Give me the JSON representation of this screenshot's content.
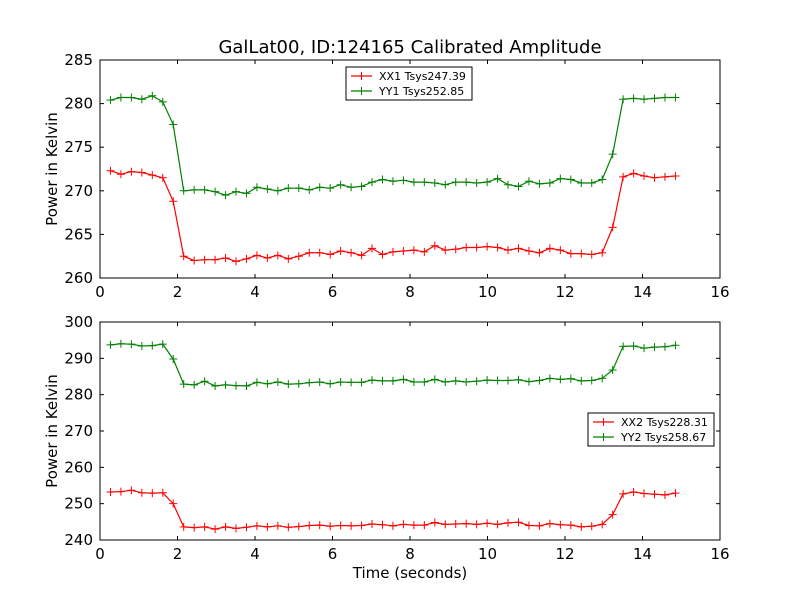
{
  "figure": {
    "title": "GalLat00, ID:124165 Calibrated Amplitude",
    "xlabel": "Time (seconds)"
  },
  "chart_data": [
    {
      "type": "line",
      "title": "GalLat00, ID:124165 Calibrated Amplitude",
      "xlabel": "",
      "ylabel": "Power in Kelvin",
      "xlim": [
        0,
        16
      ],
      "ylim": [
        260,
        285
      ],
      "xticks": [
        "0",
        "2",
        "4",
        "6",
        "8",
        "10",
        "12",
        "14",
        "16"
      ],
      "yticks": [
        "260",
        "265",
        "270",
        "275",
        "280",
        "285"
      ],
      "legend_position": "top-center",
      "x": [
        0.27,
        0.54,
        0.81,
        1.08,
        1.35,
        1.62,
        1.89,
        2.16,
        2.43,
        2.7,
        2.97,
        3.24,
        3.51,
        3.78,
        4.05,
        4.32,
        4.59,
        4.86,
        5.13,
        5.4,
        5.67,
        5.94,
        6.21,
        6.48,
        6.75,
        7.02,
        7.29,
        7.56,
        7.83,
        8.1,
        8.37,
        8.64,
        8.91,
        9.18,
        9.45,
        9.72,
        9.99,
        10.26,
        10.53,
        10.8,
        11.07,
        11.34,
        11.61,
        11.88,
        12.15,
        12.42,
        12.69,
        12.96,
        13.23,
        13.5,
        13.77,
        14.04,
        14.31,
        14.58,
        14.85
      ],
      "series": [
        {
          "name": "XX1 Tsys247.39",
          "color": "#ff0000",
          "values": [
            272.3,
            271.9,
            272.2,
            272.1,
            271.8,
            271.5,
            268.8,
            262.5,
            262.0,
            262.1,
            262.1,
            262.3,
            261.9,
            262.2,
            262.6,
            262.3,
            262.6,
            262.2,
            262.5,
            262.9,
            262.9,
            262.7,
            263.1,
            262.9,
            262.6,
            263.4,
            262.7,
            263.0,
            263.1,
            263.2,
            263.0,
            263.7,
            263.2,
            263.3,
            263.5,
            263.5,
            263.6,
            263.5,
            263.2,
            263.4,
            263.1,
            262.9,
            263.4,
            263.2,
            262.8,
            262.8,
            262.7,
            262.9,
            265.8,
            271.6,
            272.0,
            271.7,
            271.5,
            271.6,
            271.7
          ]
        },
        {
          "name": "YY1 Tsys252.85",
          "color": "#008000",
          "values": [
            280.4,
            280.7,
            280.7,
            280.5,
            280.9,
            280.2,
            277.6,
            270.0,
            270.1,
            270.1,
            269.9,
            269.5,
            269.9,
            269.7,
            270.4,
            270.2,
            270.0,
            270.3,
            270.3,
            270.1,
            270.4,
            270.3,
            270.7,
            270.4,
            270.5,
            271.0,
            271.3,
            271.1,
            271.2,
            271.0,
            271.0,
            270.9,
            270.7,
            271.0,
            271.0,
            270.9,
            271.0,
            271.4,
            270.7,
            270.5,
            271.1,
            270.8,
            270.9,
            271.4,
            271.3,
            270.9,
            270.9,
            271.3,
            274.2,
            280.5,
            280.6,
            280.5,
            280.6,
            280.7,
            280.7
          ]
        }
      ]
    },
    {
      "type": "line",
      "title": "",
      "xlabel": "Time (seconds)",
      "ylabel": "Power in Kelvin",
      "xlim": [
        0,
        16
      ],
      "ylim": [
        240,
        300
      ],
      "xticks": [
        "0",
        "2",
        "4",
        "6",
        "8",
        "10",
        "12",
        "14",
        "16"
      ],
      "yticks": [
        "240",
        "250",
        "260",
        "270",
        "280",
        "290",
        "300"
      ],
      "legend_position": "center-right",
      "x": [
        0.27,
        0.54,
        0.81,
        1.08,
        1.35,
        1.62,
        1.89,
        2.16,
        2.43,
        2.7,
        2.97,
        3.24,
        3.51,
        3.78,
        4.05,
        4.32,
        4.59,
        4.86,
        5.13,
        5.4,
        5.67,
        5.94,
        6.21,
        6.48,
        6.75,
        7.02,
        7.29,
        7.56,
        7.83,
        8.1,
        8.37,
        8.64,
        8.91,
        9.18,
        9.45,
        9.72,
        9.99,
        10.26,
        10.53,
        10.8,
        11.07,
        11.34,
        11.61,
        11.88,
        12.15,
        12.42,
        12.69,
        12.96,
        13.23,
        13.5,
        13.77,
        14.04,
        14.31,
        14.58,
        14.85
      ],
      "series": [
        {
          "name": "XX2 Tsys228.31",
          "color": "#ff0000",
          "values": [
            253.2,
            253.3,
            253.7,
            253.0,
            252.9,
            253.0,
            250.0,
            243.6,
            243.4,
            243.6,
            243.0,
            243.6,
            243.2,
            243.5,
            243.9,
            243.6,
            243.9,
            243.5,
            243.7,
            244.0,
            244.1,
            243.8,
            244.0,
            243.9,
            244.0,
            244.4,
            244.2,
            243.9,
            244.3,
            244.1,
            244.1,
            244.8,
            244.3,
            244.4,
            244.5,
            244.3,
            244.6,
            244.3,
            244.7,
            244.9,
            244.0,
            243.9,
            244.5,
            244.2,
            244.1,
            243.6,
            243.8,
            244.3,
            247.0,
            252.7,
            253.2,
            252.8,
            252.6,
            252.4,
            252.9
          ]
        },
        {
          "name": "YY2 Tsys258.67",
          "color": "#008000",
          "values": [
            293.7,
            294.0,
            293.9,
            293.4,
            293.5,
            293.9,
            289.8,
            282.9,
            282.7,
            283.7,
            282.4,
            282.7,
            282.5,
            282.4,
            283.4,
            283.0,
            283.5,
            282.9,
            283.0,
            283.3,
            283.5,
            283.0,
            283.5,
            283.4,
            283.4,
            284.0,
            283.8,
            283.8,
            284.2,
            283.5,
            283.5,
            284.2,
            283.5,
            283.8,
            283.5,
            283.7,
            284.0,
            283.9,
            283.9,
            284.1,
            283.6,
            283.9,
            284.5,
            284.2,
            284.4,
            283.8,
            283.9,
            284.5,
            286.8,
            293.3,
            293.4,
            292.8,
            293.1,
            293.2,
            293.6
          ]
        }
      ]
    }
  ]
}
